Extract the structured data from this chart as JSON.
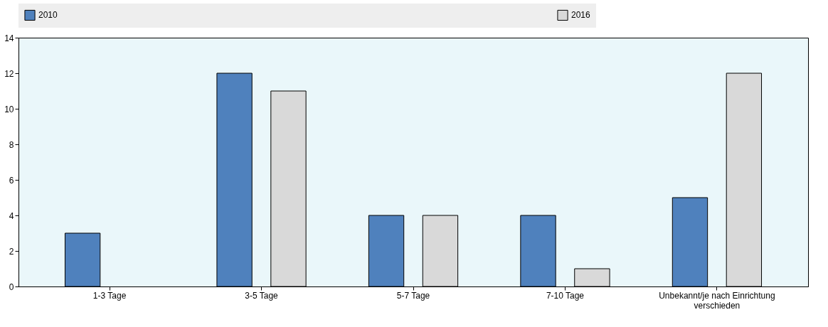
{
  "chart_data": {
    "type": "bar",
    "categories": [
      "1-3 Tage",
      "3-5 Tage",
      "5-7 Tage",
      "7-10 Tage",
      "Unbekannt/je nach Einrichtung verschieden"
    ],
    "series": [
      {
        "name": "2010",
        "color": "#4f81bd",
        "values": [
          3,
          12,
          4,
          4,
          5
        ]
      },
      {
        "name": "2016",
        "color": "#d9d9d9",
        "values": [
          null,
          11,
          4,
          1,
          12
        ]
      }
    ],
    "ylim": [
      0,
      14
    ],
    "yticks": [
      0,
      2,
      4,
      6,
      8,
      10,
      12,
      14
    ],
    "grid": false,
    "legend": "top"
  }
}
